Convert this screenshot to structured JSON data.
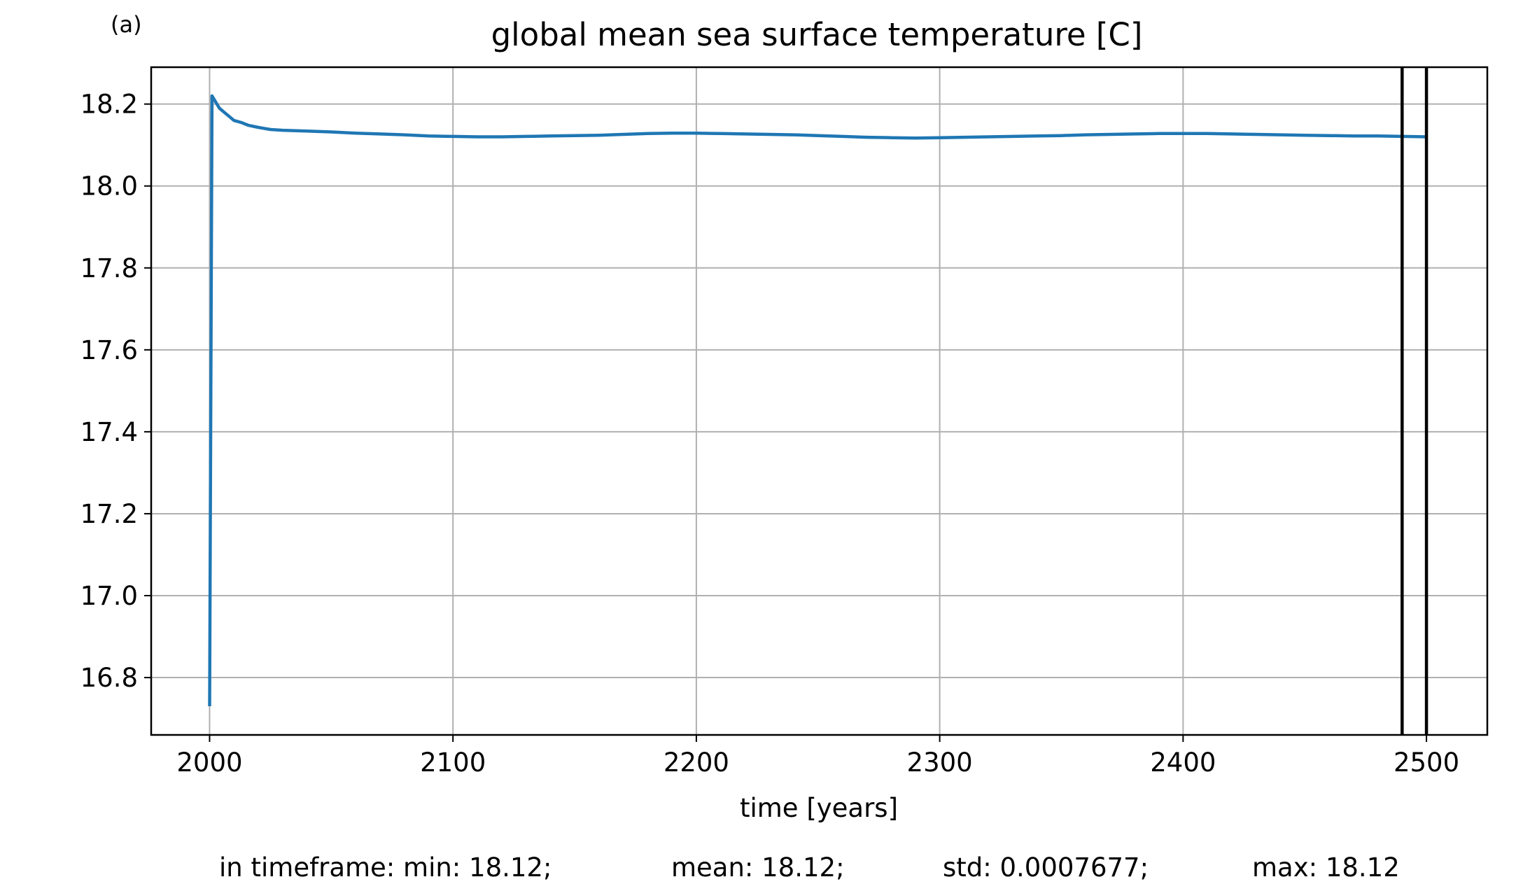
{
  "panel_label": "(a)",
  "chart_data": {
    "type": "line",
    "title": "global mean sea surface temperature [C]",
    "xlabel": "time [years]",
    "ylabel": "",
    "xlim": [
      1976,
      2525
    ],
    "ylim": [
      16.66,
      18.29
    ],
    "xticks": [
      2000,
      2100,
      2200,
      2300,
      2400,
      2500
    ],
    "yticks": [
      16.8,
      17.0,
      17.2,
      17.4,
      17.6,
      17.8,
      18.0,
      18.2
    ],
    "grid": true,
    "legend": "none",
    "series": [
      {
        "color": "#1f77b4",
        "x": [
          2000,
          2001,
          2002,
          2004,
          2006,
          2008,
          2010,
          2013,
          2016,
          2020,
          2025,
          2030,
          2040,
          2050,
          2060,
          2070,
          2080,
          2090,
          2100,
          2110,
          2120,
          2130,
          2140,
          2150,
          2160,
          2170,
          2180,
          2190,
          2200,
          2210,
          2220,
          2230,
          2240,
          2250,
          2260,
          2270,
          2280,
          2290,
          2300,
          2310,
          2320,
          2330,
          2340,
          2350,
          2360,
          2370,
          2380,
          2390,
          2400,
          2410,
          2420,
          2430,
          2440,
          2450,
          2460,
          2470,
          2480,
          2490,
          2500
        ],
        "y": [
          16.73,
          18.22,
          18.21,
          18.19,
          18.18,
          18.17,
          18.16,
          18.155,
          18.148,
          18.143,
          18.138,
          18.136,
          18.134,
          18.132,
          18.129,
          18.127,
          18.125,
          18.122,
          18.121,
          18.12,
          18.12,
          18.121,
          18.122,
          18.123,
          18.124,
          18.126,
          18.128,
          18.129,
          18.129,
          18.128,
          18.127,
          18.126,
          18.125,
          18.123,
          18.121,
          18.119,
          18.118,
          18.117,
          18.118,
          18.119,
          18.12,
          18.121,
          18.122,
          18.123,
          18.125,
          18.126,
          18.127,
          18.128,
          18.128,
          18.128,
          18.127,
          18.126,
          18.125,
          18.124,
          18.123,
          18.122,
          18.122,
          18.121,
          18.12
        ]
      }
    ],
    "vlines": [
      2490,
      2500
    ],
    "vline_color": "#000000",
    "annotation": {
      "min": "in timeframe: min: 18.12;",
      "mean": "mean: 18.12;",
      "std": "std: 0.0007677;",
      "max": "max: 18.12"
    }
  }
}
